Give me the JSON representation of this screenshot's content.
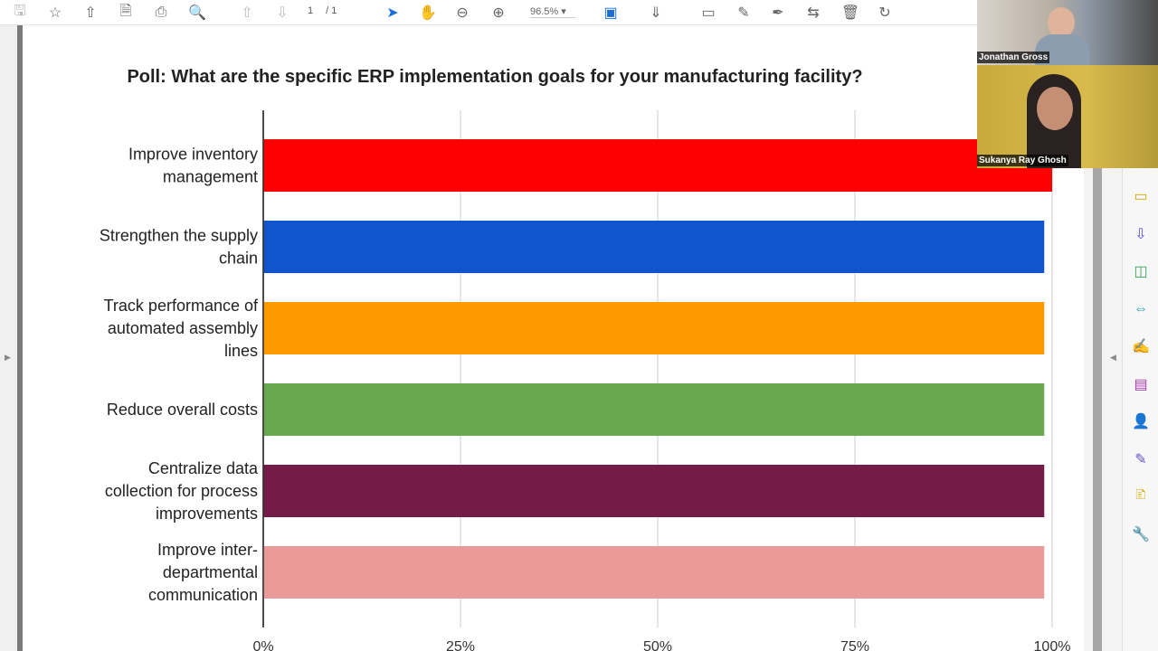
{
  "toolbar": {
    "icons": [
      "save-icon",
      "bookmark-star-icon",
      "upload-cloud-icon",
      "protect-file-icon",
      "print-icon",
      "find-zoom-icon",
      "prev-page-icon",
      "next-page-icon",
      "select-cursor-icon",
      "hand-icon",
      "zoom-out-icon",
      "zoom-in-icon",
      "fit-page-icon",
      "scroll-mode-icon",
      "comment-icon",
      "highlight-pen-icon",
      "sign-icon",
      "share-file-icon",
      "delete-icon",
      "rotate-icon"
    ],
    "page_current": "1",
    "page_total": "/ 1",
    "zoom": "96.5%"
  },
  "videos": [
    {
      "name": "Jonathan Gross"
    },
    {
      "name": "Sukanya Ray Ghosh"
    }
  ],
  "tool_panel": [
    "comment-icon",
    "export-pdf-icon",
    "organize-pages-icon",
    "compress-pdf-icon",
    "fill-sign-icon",
    "create-pdf-icon",
    "request-signatures-icon",
    "edit-sign-icon",
    "send-for-comment-icon",
    "more-tools-icon"
  ],
  "chart_data": {
    "type": "bar",
    "orientation": "horizontal",
    "title": "Poll: What are the specific ERP implementation goals for your manufacturing facility?",
    "categories": [
      [
        "Improve inventory",
        "management"
      ],
      [
        "Strengthen the supply",
        "chain"
      ],
      [
        "Track performance of",
        "automated assembly",
        "lines"
      ],
      [
        "Reduce overall costs"
      ],
      [
        "Centralize data",
        "collection for process",
        "improvements"
      ],
      [
        "Improve inter-",
        "departmental",
        "communication"
      ]
    ],
    "values": [
      100,
      99,
      99,
      99,
      99,
      99
    ],
    "colors": [
      "#ff0000",
      "#1155cc",
      "#ff9900",
      "#6aa84f",
      "#741b47",
      "#ea9999"
    ],
    "xticks": [
      "0%",
      "25%",
      "50%",
      "75%",
      "100%"
    ],
    "xlim": [
      0,
      100
    ],
    "grid": true
  }
}
